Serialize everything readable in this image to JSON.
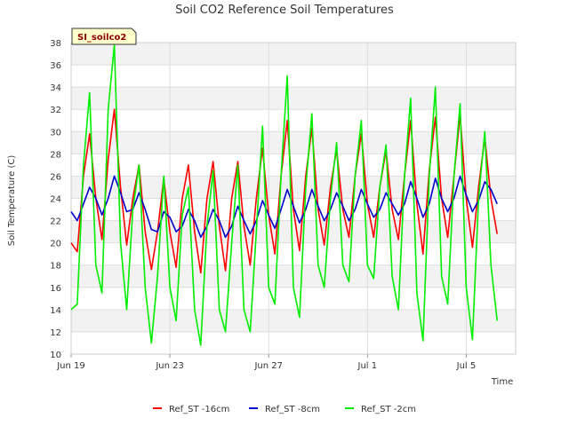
{
  "chart_data": {
    "type": "line",
    "title": "Soil CO2 Reference Soil Temperatures",
    "xlabel": "Time",
    "ylabel": "Soil Temperature (C)",
    "badge": "SI_soilco2",
    "ylim": [
      10,
      38
    ],
    "yticks": [
      10,
      12,
      14,
      16,
      18,
      20,
      22,
      24,
      26,
      28,
      30,
      32,
      34,
      36,
      38
    ],
    "xlim": [
      "2024-06-19",
      "2024-07-07"
    ],
    "xticks": [
      {
        "label": "Jun 19",
        "date": "2024-06-19"
      },
      {
        "label": "Jun 23",
        "date": "2024-06-23"
      },
      {
        "label": "Jun 27",
        "date": "2024-06-27"
      },
      {
        "label": "Jul 1",
        "date": "2024-07-01"
      },
      {
        "label": "Jul 5",
        "date": "2024-07-05"
      }
    ],
    "grid": true,
    "legend": "bottom",
    "series": [
      {
        "name": "Ref_ST -16cm",
        "color": "#ff0000",
        "points": [
          [
            "2024-06-19T00:00",
            20.0
          ],
          [
            "2024-06-19T06:00",
            19.2
          ],
          [
            "2024-06-19T12:00",
            26.0
          ],
          [
            "2024-06-19T18:00",
            29.8
          ],
          [
            "2024-06-20T00:00",
            24.0
          ],
          [
            "2024-06-20T06:00",
            20.3
          ],
          [
            "2024-06-20T12:00",
            27.5
          ],
          [
            "2024-06-20T18:00",
            32.0
          ],
          [
            "2024-06-21T00:00",
            25.0
          ],
          [
            "2024-06-21T06:00",
            19.8
          ],
          [
            "2024-06-21T12:00",
            24.0
          ],
          [
            "2024-06-21T18:00",
            27.0
          ],
          [
            "2024-06-22T00:00",
            21.0
          ],
          [
            "2024-06-22T06:00",
            17.6
          ],
          [
            "2024-06-22T12:00",
            21.0
          ],
          [
            "2024-06-22T18:00",
            25.8
          ],
          [
            "2024-06-23T00:00",
            21.0
          ],
          [
            "2024-06-23T06:00",
            17.8
          ],
          [
            "2024-06-23T12:00",
            24.0
          ],
          [
            "2024-06-23T18:00",
            27.0
          ],
          [
            "2024-06-24T00:00",
            21.0
          ],
          [
            "2024-06-24T06:00",
            17.3
          ],
          [
            "2024-06-24T12:00",
            24.0
          ],
          [
            "2024-06-24T18:00",
            27.3
          ],
          [
            "2024-06-25T00:00",
            21.5
          ],
          [
            "2024-06-25T06:00",
            17.5
          ],
          [
            "2024-06-25T12:00",
            24.0
          ],
          [
            "2024-06-25T18:00",
            27.3
          ],
          [
            "2024-06-26T00:00",
            21.5
          ],
          [
            "2024-06-26T06:00",
            18.0
          ],
          [
            "2024-06-26T12:00",
            24.0
          ],
          [
            "2024-06-26T18:00",
            28.5
          ],
          [
            "2024-06-27T00:00",
            22.5
          ],
          [
            "2024-06-27T06:00",
            19.0
          ],
          [
            "2024-06-27T12:00",
            26.0
          ],
          [
            "2024-06-27T18:00",
            31.0
          ],
          [
            "2024-06-28T00:00",
            23.0
          ],
          [
            "2024-06-28T06:00",
            19.3
          ],
          [
            "2024-06-28T12:00",
            26.0
          ],
          [
            "2024-06-28T18:00",
            30.3
          ],
          [
            "2024-06-29T00:00",
            23.0
          ],
          [
            "2024-06-29T06:00",
            19.8
          ],
          [
            "2024-06-29T12:00",
            25.0
          ],
          [
            "2024-06-29T18:00",
            28.4
          ],
          [
            "2024-06-30T00:00",
            23.0
          ],
          [
            "2024-06-30T06:00",
            20.5
          ],
          [
            "2024-06-30T12:00",
            26.0
          ],
          [
            "2024-06-30T18:00",
            29.8
          ],
          [
            "2024-07-01T00:00",
            23.5
          ],
          [
            "2024-07-01T06:00",
            20.5
          ],
          [
            "2024-07-01T12:00",
            25.0
          ],
          [
            "2024-07-01T18:00",
            28.3
          ],
          [
            "2024-07-02T00:00",
            23.0
          ],
          [
            "2024-07-02T06:00",
            20.3
          ],
          [
            "2024-07-02T12:00",
            26.0
          ],
          [
            "2024-07-02T18:00",
            31.0
          ],
          [
            "2024-07-03T00:00",
            23.5
          ],
          [
            "2024-07-03T06:00",
            19.0
          ],
          [
            "2024-07-03T12:00",
            26.5
          ],
          [
            "2024-07-03T18:00",
            31.3
          ],
          [
            "2024-07-04T00:00",
            24.0
          ],
          [
            "2024-07-04T06:00",
            20.5
          ],
          [
            "2024-07-04T12:00",
            26.0
          ],
          [
            "2024-07-04T18:00",
            31.5
          ],
          [
            "2024-07-05T00:00",
            24.0
          ],
          [
            "2024-07-05T06:00",
            19.6
          ],
          [
            "2024-07-05T12:00",
            25.0
          ],
          [
            "2024-07-05T18:00",
            29.5
          ],
          [
            "2024-07-06T00:00",
            24.0
          ],
          [
            "2024-07-06T06:00",
            20.8
          ]
        ]
      },
      {
        "name": "Ref_ST -8cm",
        "color": "#0000cc",
        "points": [
          [
            "2024-06-19T00:00",
            22.8
          ],
          [
            "2024-06-19T06:00",
            22.0
          ],
          [
            "2024-06-19T12:00",
            23.5
          ],
          [
            "2024-06-19T18:00",
            25.0
          ],
          [
            "2024-06-20T00:00",
            24.0
          ],
          [
            "2024-06-20T06:00",
            22.5
          ],
          [
            "2024-06-20T12:00",
            24.0
          ],
          [
            "2024-06-20T18:00",
            26.0
          ],
          [
            "2024-06-21T00:00",
            24.5
          ],
          [
            "2024-06-21T06:00",
            22.8
          ],
          [
            "2024-06-21T12:00",
            23.0
          ],
          [
            "2024-06-21T18:00",
            24.5
          ],
          [
            "2024-06-22T00:00",
            23.0
          ],
          [
            "2024-06-22T06:00",
            21.2
          ],
          [
            "2024-06-22T12:00",
            21.0
          ],
          [
            "2024-06-22T18:00",
            22.8
          ],
          [
            "2024-06-23T00:00",
            22.3
          ],
          [
            "2024-06-23T06:00",
            21.0
          ],
          [
            "2024-06-23T12:00",
            21.5
          ],
          [
            "2024-06-23T18:00",
            23.0
          ],
          [
            "2024-06-24T00:00",
            22.0
          ],
          [
            "2024-06-24T06:00",
            20.5
          ],
          [
            "2024-06-24T12:00",
            21.5
          ],
          [
            "2024-06-24T18:00",
            23.0
          ],
          [
            "2024-06-25T00:00",
            22.0
          ],
          [
            "2024-06-25T06:00",
            20.5
          ],
          [
            "2024-06-25T12:00",
            21.5
          ],
          [
            "2024-06-25T18:00",
            23.3
          ],
          [
            "2024-06-26T00:00",
            22.0
          ],
          [
            "2024-06-26T06:00",
            20.8
          ],
          [
            "2024-06-26T12:00",
            22.0
          ],
          [
            "2024-06-26T18:00",
            23.8
          ],
          [
            "2024-06-27T00:00",
            22.5
          ],
          [
            "2024-06-27T06:00",
            21.3
          ],
          [
            "2024-06-27T12:00",
            23.0
          ],
          [
            "2024-06-27T18:00",
            24.8
          ],
          [
            "2024-06-28T00:00",
            23.3
          ],
          [
            "2024-06-28T06:00",
            21.8
          ],
          [
            "2024-06-28T12:00",
            23.0
          ],
          [
            "2024-06-28T18:00",
            24.8
          ],
          [
            "2024-06-29T00:00",
            23.3
          ],
          [
            "2024-06-29T06:00",
            22.0
          ],
          [
            "2024-06-29T12:00",
            23.0
          ],
          [
            "2024-06-29T18:00",
            24.5
          ],
          [
            "2024-06-30T00:00",
            23.3
          ],
          [
            "2024-06-30T06:00",
            22.0
          ],
          [
            "2024-06-30T12:00",
            23.0
          ],
          [
            "2024-06-30T18:00",
            24.8
          ],
          [
            "2024-07-01T00:00",
            23.5
          ],
          [
            "2024-07-01T06:00",
            22.3
          ],
          [
            "2024-07-01T12:00",
            23.0
          ],
          [
            "2024-07-01T18:00",
            24.5
          ],
          [
            "2024-07-02T00:00",
            23.5
          ],
          [
            "2024-07-02T06:00",
            22.5
          ],
          [
            "2024-07-02T12:00",
            23.5
          ],
          [
            "2024-07-02T18:00",
            25.5
          ],
          [
            "2024-07-03T00:00",
            24.0
          ],
          [
            "2024-07-03T06:00",
            22.3
          ],
          [
            "2024-07-03T12:00",
            23.5
          ],
          [
            "2024-07-03T18:00",
            25.8
          ],
          [
            "2024-07-04T00:00",
            24.0
          ],
          [
            "2024-07-04T06:00",
            22.8
          ],
          [
            "2024-07-04T12:00",
            24.0
          ],
          [
            "2024-07-04T18:00",
            26.0
          ],
          [
            "2024-07-05T00:00",
            24.3
          ],
          [
            "2024-07-05T06:00",
            22.8
          ],
          [
            "2024-07-05T12:00",
            23.8
          ],
          [
            "2024-07-05T18:00",
            25.5
          ],
          [
            "2024-07-06T00:00",
            24.8
          ],
          [
            "2024-07-06T06:00",
            23.5
          ]
        ]
      },
      {
        "name": "Ref_ST -2cm",
        "color": "#00ee00",
        "points": [
          [
            "2024-06-19T00:00",
            14.0
          ],
          [
            "2024-06-19T06:00",
            14.5
          ],
          [
            "2024-06-19T12:00",
            27.0
          ],
          [
            "2024-06-19T18:00",
            33.5
          ],
          [
            "2024-06-20T00:00",
            18.0
          ],
          [
            "2024-06-20T06:00",
            15.5
          ],
          [
            "2024-06-20T12:00",
            32.0
          ],
          [
            "2024-06-20T18:00",
            37.8
          ],
          [
            "2024-06-21T00:00",
            20.0
          ],
          [
            "2024-06-21T06:00",
            14.0
          ],
          [
            "2024-06-21T12:00",
            23.0
          ],
          [
            "2024-06-21T18:00",
            27.0
          ],
          [
            "2024-06-22T00:00",
            16.0
          ],
          [
            "2024-06-22T06:00",
            11.0
          ],
          [
            "2024-06-22T12:00",
            17.0
          ],
          [
            "2024-06-22T18:00",
            26.0
          ],
          [
            "2024-06-23T00:00",
            16.0
          ],
          [
            "2024-06-23T06:00",
            13.0
          ],
          [
            "2024-06-23T12:00",
            22.5
          ],
          [
            "2024-06-23T18:00",
            25.0
          ],
          [
            "2024-06-24T00:00",
            14.0
          ],
          [
            "2024-06-24T06:00",
            10.8
          ],
          [
            "2024-06-24T12:00",
            21.5
          ],
          [
            "2024-06-24T18:00",
            26.5
          ],
          [
            "2024-06-25T00:00",
            14.0
          ],
          [
            "2024-06-25T06:00",
            12.0
          ],
          [
            "2024-06-25T12:00",
            20.0
          ],
          [
            "2024-06-25T18:00",
            27.0
          ],
          [
            "2024-06-26T00:00",
            14.0
          ],
          [
            "2024-06-26T06:00",
            12.0
          ],
          [
            "2024-06-26T12:00",
            21.0
          ],
          [
            "2024-06-26T18:00",
            30.5
          ],
          [
            "2024-06-27T00:00",
            16.0
          ],
          [
            "2024-06-27T06:00",
            14.5
          ],
          [
            "2024-06-27T12:00",
            26.0
          ],
          [
            "2024-06-27T18:00",
            35.0
          ],
          [
            "2024-06-28T00:00",
            16.0
          ],
          [
            "2024-06-28T06:00",
            13.3
          ],
          [
            "2024-06-28T12:00",
            25.0
          ],
          [
            "2024-06-28T18:00",
            31.6
          ],
          [
            "2024-06-29T00:00",
            18.0
          ],
          [
            "2024-06-29T06:00",
            16.0
          ],
          [
            "2024-06-29T12:00",
            24.0
          ],
          [
            "2024-06-29T18:00",
            29.0
          ],
          [
            "2024-06-30T00:00",
            18.0
          ],
          [
            "2024-06-30T06:00",
            16.5
          ],
          [
            "2024-06-30T12:00",
            26.0
          ],
          [
            "2024-06-30T18:00",
            31.0
          ],
          [
            "2024-07-01T00:00",
            18.0
          ],
          [
            "2024-07-01T06:00",
            16.8
          ],
          [
            "2024-07-01T12:00",
            25.0
          ],
          [
            "2024-07-01T18:00",
            28.8
          ],
          [
            "2024-07-02T00:00",
            17.0
          ],
          [
            "2024-07-02T06:00",
            14.0
          ],
          [
            "2024-07-02T12:00",
            26.0
          ],
          [
            "2024-07-02T18:00",
            33.0
          ],
          [
            "2024-07-03T00:00",
            15.5
          ],
          [
            "2024-07-03T06:00",
            11.2
          ],
          [
            "2024-07-03T12:00",
            26.0
          ],
          [
            "2024-07-03T18:00",
            34.0
          ],
          [
            "2024-07-04T00:00",
            17.0
          ],
          [
            "2024-07-04T06:00",
            14.5
          ],
          [
            "2024-07-04T12:00",
            26.0
          ],
          [
            "2024-07-04T18:00",
            32.5
          ],
          [
            "2024-07-05T00:00",
            16.0
          ],
          [
            "2024-07-05T06:00",
            11.3
          ],
          [
            "2024-07-05T12:00",
            24.0
          ],
          [
            "2024-07-05T18:00",
            30.0
          ],
          [
            "2024-07-06T00:00",
            18.0
          ],
          [
            "2024-07-06T06:00",
            13.0
          ]
        ]
      }
    ]
  }
}
